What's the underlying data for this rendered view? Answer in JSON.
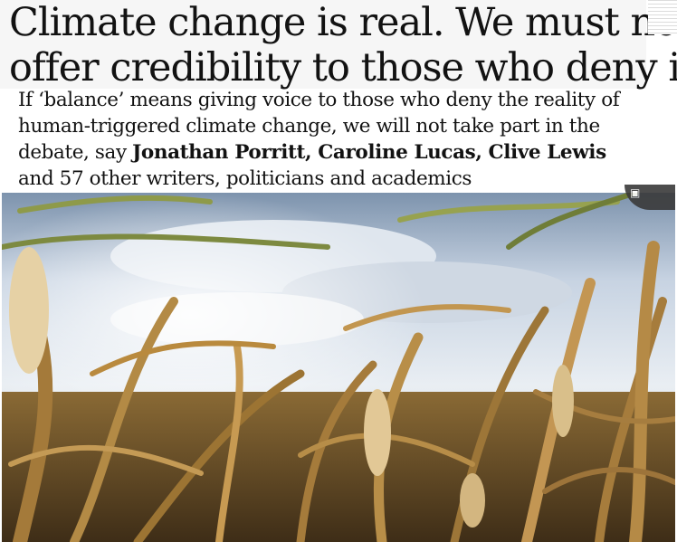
{
  "headline": {
    "line1": "Climate change is real. We must not",
    "line2": "offer credibility to those who deny it"
  },
  "standfirst": {
    "line1": "If ‘balance’ means giving voice to those who deny the reality of",
    "line2": "human-triggered climate change, we will not take part in the",
    "line3_prefix": "debate, say ",
    "authors": "Jonathan Porritt, Caroline Lucas, Clive Lewis",
    "line4": "and 57 other writers, politicians and academics"
  },
  "photo": {
    "alt": "Drought-withered maize field under a cloudy sky",
    "icon": "gallery-icon"
  },
  "colors": {
    "text": "#121212",
    "headline_bg": "#f6f6f6",
    "sky": "#c9d6e6",
    "corn": "#b98a3e"
  }
}
